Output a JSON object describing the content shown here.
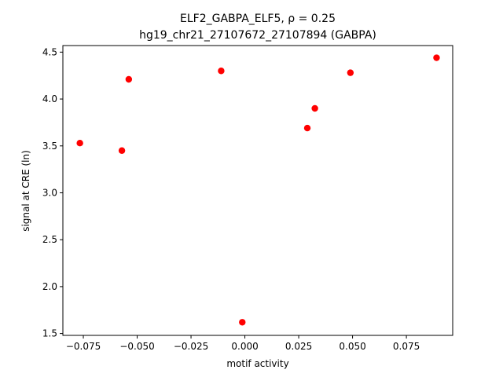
{
  "chart_data": {
    "type": "scatter",
    "title_line1": "ELF2_GABPA_ELF5, ρ = 0.25",
    "title_line2": "hg19_chr21_27107672_27107894 (GABPA)",
    "xlabel": "motif activity",
    "ylabel": "signal at CRE (ln)",
    "xlim": [
      -0.0845,
      0.0965
    ],
    "ylim": [
      1.48,
      4.57
    ],
    "xticks": [
      -0.075,
      -0.05,
      -0.025,
      0.0,
      0.025,
      0.05,
      0.075
    ],
    "xtick_labels": [
      "−0.075",
      "−0.050",
      "−0.025",
      "0.000",
      "0.025",
      "0.050",
      "0.075"
    ],
    "yticks": [
      1.5,
      2.0,
      2.5,
      3.0,
      3.5,
      4.0,
      4.5
    ],
    "ytick_labels": [
      "1.5",
      "2.0",
      "2.5",
      "3.0",
      "3.5",
      "4.0",
      "4.5"
    ],
    "grid": false,
    "marker_color": "#ff0000",
    "points": [
      {
        "x": -0.0766,
        "y": 3.53
      },
      {
        "x": -0.0571,
        "y": 3.45
      },
      {
        "x": -0.0539,
        "y": 4.21
      },
      {
        "x": -0.011,
        "y": 4.3
      },
      {
        "x": -0.0012,
        "y": 1.62
      },
      {
        "x": 0.029,
        "y": 3.69
      },
      {
        "x": 0.0325,
        "y": 3.9
      },
      {
        "x": 0.049,
        "y": 4.28
      },
      {
        "x": 0.089,
        "y": 4.44
      }
    ]
  }
}
